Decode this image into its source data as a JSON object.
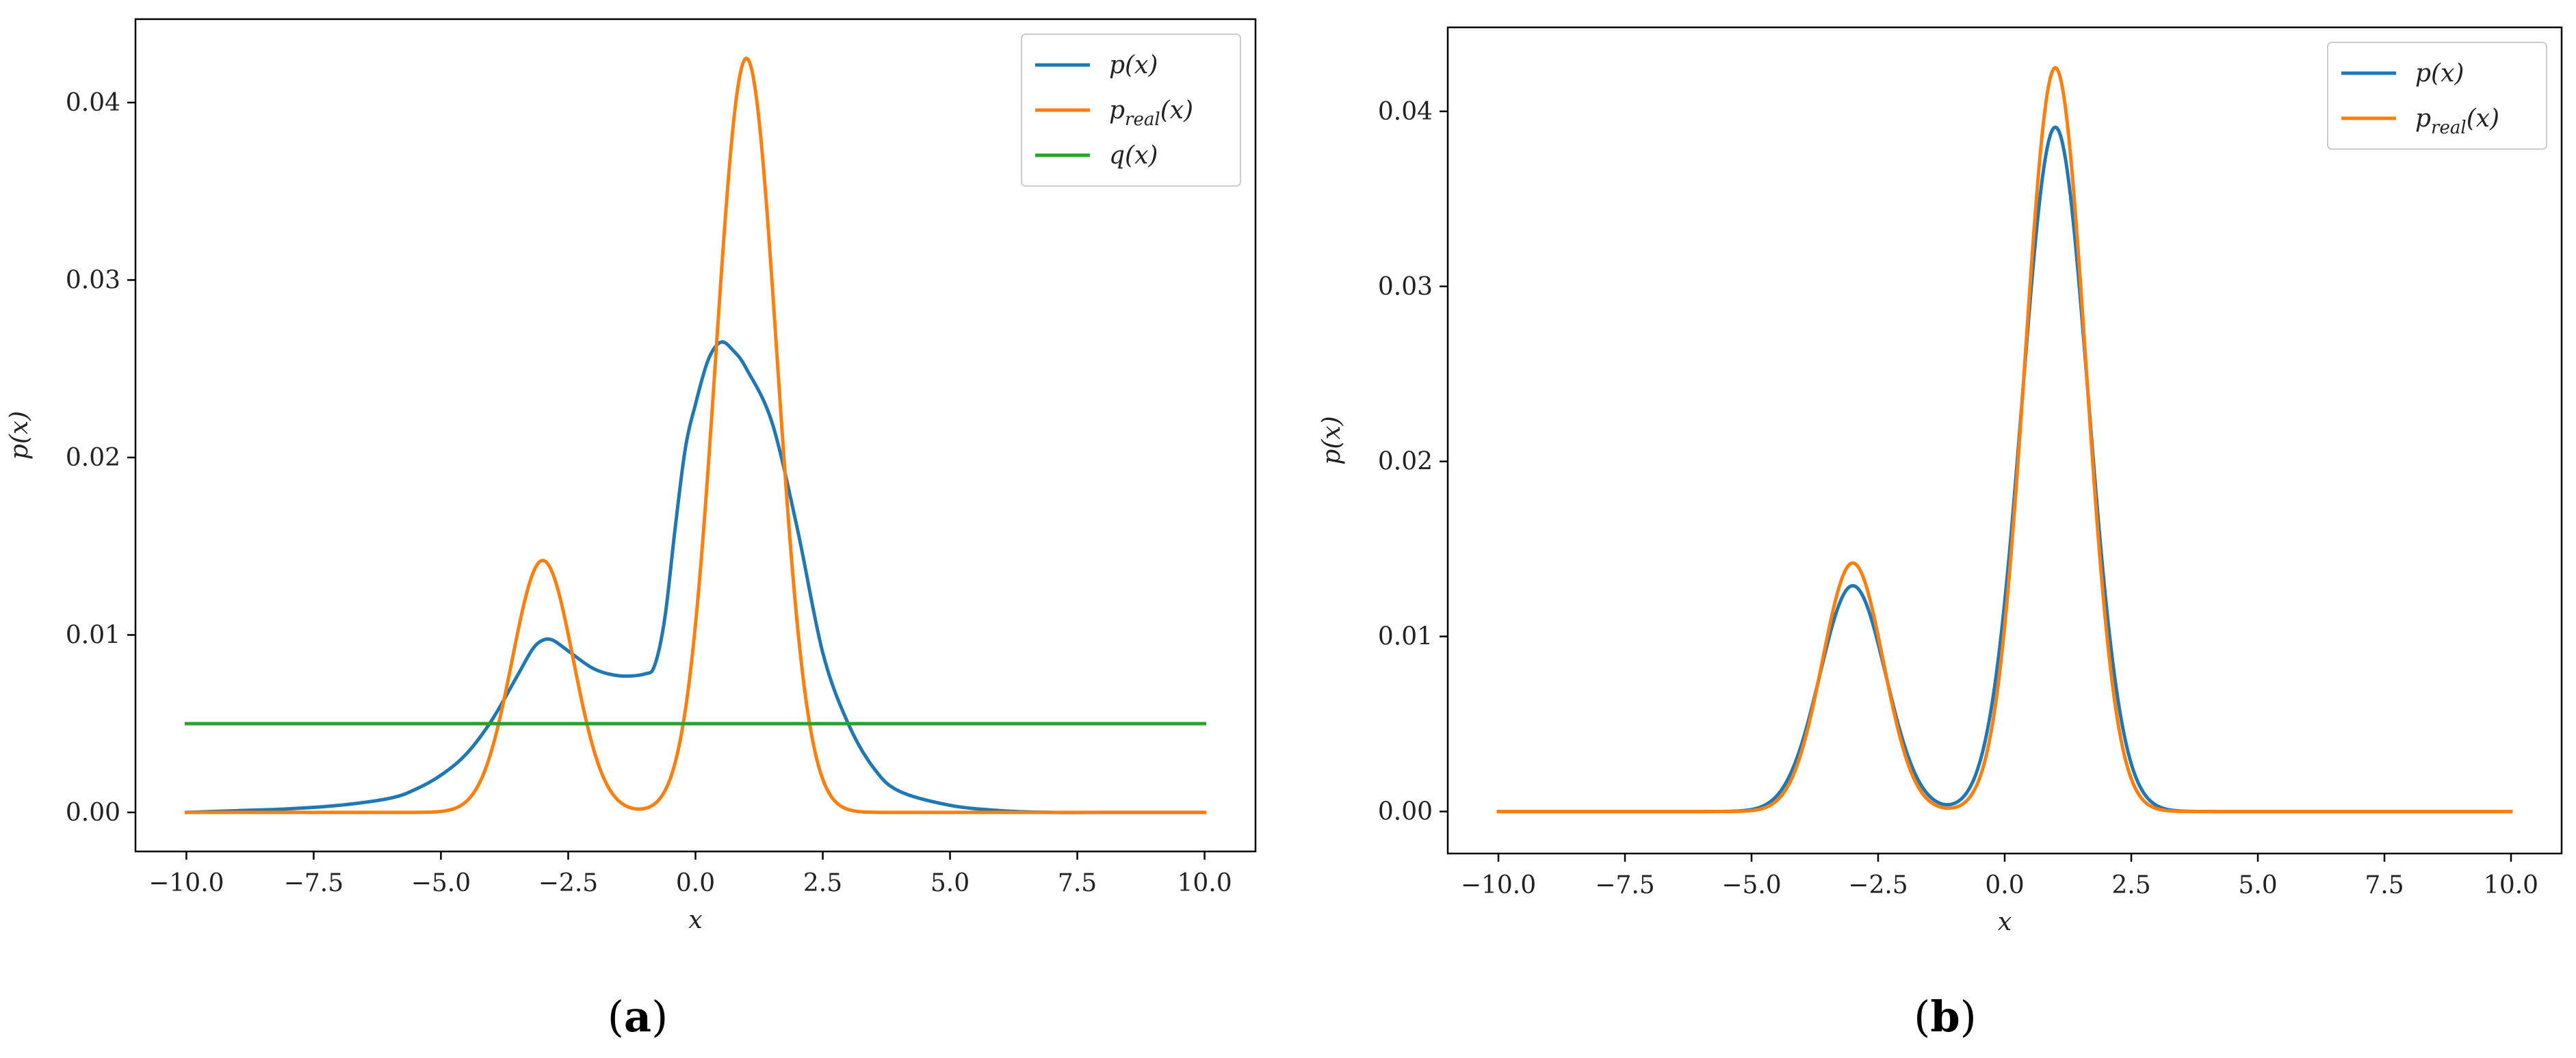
{
  "colors": {
    "blue": "#1f77b4",
    "orange": "#ff7f0e",
    "green": "#2ca02c",
    "axis": "#000000",
    "legend_border": "#cccccc"
  },
  "chart_data": [
    {
      "id": "a",
      "caption_open": "(",
      "caption_letter": "a",
      "caption_close": ")",
      "type": "line",
      "xlabel": "x",
      "ylabel": "p(x)",
      "xlim": [
        -11.0,
        11.0
      ],
      "ylim": [
        -0.0022,
        0.0447
      ],
      "x_ticks": [
        -10.0,
        -7.5,
        -5.0,
        -2.5,
        0.0,
        2.5,
        5.0,
        7.5,
        10.0
      ],
      "x_tick_labels": [
        "−10.0",
        "−7.5",
        "−5.0",
        "−2.5",
        "0.0",
        "2.5",
        "5.0",
        "7.5",
        "10.0"
      ],
      "y_ticks": [
        0.0,
        0.01,
        0.02,
        0.03,
        0.04
      ],
      "y_tick_labels": [
        "0.00",
        "0.01",
        "0.02",
        "0.03",
        "0.04"
      ],
      "legend_position": "top-right",
      "series": [
        {
          "name": "p(x)",
          "color": "#1f77b4",
          "x": [
            -10,
            -9,
            -8,
            -7,
            -6,
            -5.5,
            -5,
            -4.5,
            -4,
            -3.5,
            -3.2,
            -3,
            -2.8,
            -2.5,
            -2,
            -1.5,
            -1,
            -0.8,
            -0.6,
            -0.4,
            -0.2,
            0,
            0.25,
            0.5,
            0.75,
            1,
            1.5,
            2,
            2.5,
            3,
            3.5,
            4,
            5,
            6,
            7,
            8,
            9,
            10
          ],
          "y": [
            0.0,
            0.0001,
            0.0002,
            0.0004,
            0.0008,
            0.0013,
            0.0021,
            0.0033,
            0.0052,
            0.0077,
            0.0092,
            0.0097,
            0.0097,
            0.0091,
            0.0081,
            0.0077,
            0.0078,
            0.0083,
            0.011,
            0.016,
            0.0205,
            0.023,
            0.0255,
            0.0265,
            0.026,
            0.025,
            0.022,
            0.016,
            0.009,
            0.005,
            0.0025,
            0.0012,
            0.0004,
            0.0001,
            0.0,
            0.0,
            0.0,
            0.0
          ]
        },
        {
          "name": "p_real(x)",
          "color": "#ff7f0e",
          "gaussians": [
            {
              "mu": -3.0,
              "sigma": 0.6,
              "amp": 0.0142
            },
            {
              "mu": 1.0,
              "sigma": 0.6,
              "amp": 0.0425
            }
          ],
          "x_range": [
            -10,
            10
          ]
        },
        {
          "name": "q(x)",
          "color": "#2ca02c",
          "x": [
            -10,
            10
          ],
          "y": [
            0.005,
            0.005
          ]
        }
      ]
    },
    {
      "id": "b",
      "caption_open": "(",
      "caption_letter": "b",
      "caption_close": ")",
      "type": "line",
      "xlabel": "x",
      "ylabel": "p(x)",
      "xlim": [
        -11.0,
        11.0
      ],
      "ylim": [
        -0.0024,
        0.0448
      ],
      "x_ticks": [
        -10.0,
        -7.5,
        -5.0,
        -2.5,
        0.0,
        2.5,
        5.0,
        7.5,
        10.0
      ],
      "x_tick_labels": [
        "−10.0",
        "−7.5",
        "−5.0",
        "−2.5",
        "0.0",
        "2.5",
        "5.0",
        "7.5",
        "10.0"
      ],
      "y_ticks": [
        0.0,
        0.01,
        0.02,
        0.03,
        0.04
      ],
      "y_tick_labels": [
        "0.00",
        "0.01",
        "0.02",
        "0.03",
        "0.04"
      ],
      "legend_position": "top-right",
      "series": [
        {
          "name": "p(x)",
          "color": "#1f77b4",
          "gaussians": [
            {
              "mu": -3.0,
              "sigma": 0.65,
              "amp": 0.0129
            },
            {
              "mu": 1.0,
              "sigma": 0.65,
              "amp": 0.0391
            }
          ],
          "x_range": [
            -10,
            10
          ]
        },
        {
          "name": "p_real(x)",
          "color": "#ff7f0e",
          "gaussians": [
            {
              "mu": -3.0,
              "sigma": 0.6,
              "amp": 0.0142
            },
            {
              "mu": 1.0,
              "sigma": 0.6,
              "amp": 0.0425
            }
          ],
          "x_range": [
            -10,
            10
          ]
        }
      ]
    }
  ]
}
